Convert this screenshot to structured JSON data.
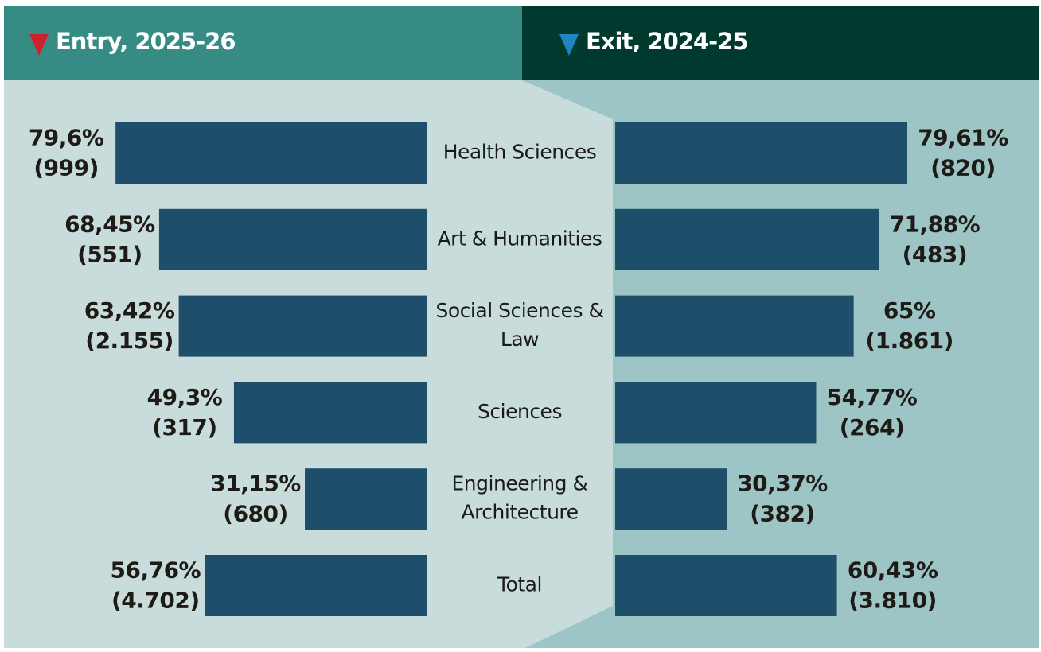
{
  "chart_data": {
    "type": "butterfly-bar",
    "categories": [
      [
        "Health Sciences"
      ],
      [
        "Art & Humanities"
      ],
      [
        "Social Sciences &",
        "Law"
      ],
      [
        "Sciences"
      ],
      [
        "Engineering &",
        "Architecture"
      ],
      [
        "Total"
      ]
    ],
    "xlim": [
      0,
      100
    ],
    "series": [
      {
        "name": "Entry, 2025-26",
        "color": "#1d4f6b",
        "marker_color": "#d0202e",
        "values": [
          79.6,
          68.45,
          63.42,
          49.3,
          31.15,
          56.76
        ],
        "value_labels": [
          "79,6%",
          "68,45%",
          "63,42%",
          "49,3%",
          "31,15%",
          "56,76%"
        ],
        "counts": [
          999,
          551,
          2155,
          317,
          680,
          4702
        ],
        "count_labels": [
          "(999)",
          "(551)",
          "(2.155)",
          "(317)",
          "(680)",
          "(4.702)"
        ]
      },
      {
        "name": "Exit, 2024-25",
        "color": "#1d4f6b",
        "marker_color": "#1f86c2",
        "values": [
          79.61,
          71.88,
          65,
          54.77,
          30.37,
          60.43
        ],
        "value_labels": [
          "79,61%",
          "71,88%",
          "65%",
          "54,77%",
          "30,37%",
          "60,43%"
        ],
        "counts": [
          820,
          483,
          1861,
          264,
          382,
          3810
        ],
        "count_labels": [
          "(820)",
          "(483)",
          "(1.861)",
          "(264)",
          "(382)",
          "(3.810)"
        ]
      }
    ]
  }
}
